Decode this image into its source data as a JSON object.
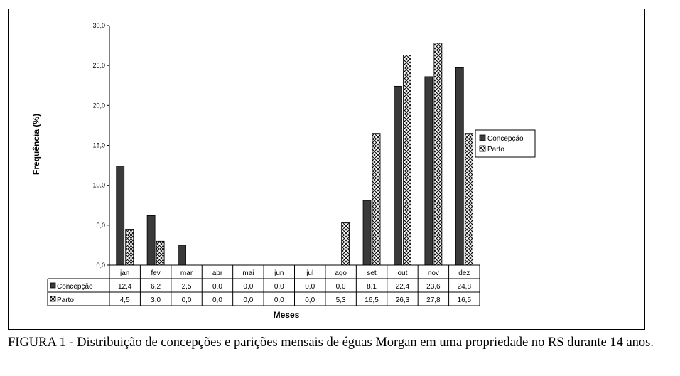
{
  "chart_data": {
    "type": "bar",
    "xlabel": "Meses",
    "ylabel": "Frequência (%)",
    "ylim": [
      0,
      30
    ],
    "ytick_values": [
      0,
      5,
      10,
      15,
      20,
      25,
      30
    ],
    "ytick_labels": [
      "0,0",
      "5,0",
      "10,0",
      "15,0",
      "20,0",
      "25,0",
      "30,0"
    ],
    "categories": [
      "jan",
      "fev",
      "mar",
      "abr",
      "mai",
      "jun",
      "jul",
      "ago",
      "set",
      "out",
      "nov",
      "dez"
    ],
    "series": [
      {
        "name": "Concepção",
        "values": [
          12.4,
          6.2,
          2.5,
          0.0,
          0.0,
          0.0,
          0.0,
          0.0,
          8.1,
          22.4,
          23.6,
          24.8
        ],
        "labels": [
          "12,4",
          "6,2",
          "2,5",
          "0,0",
          "0,0",
          "0,0",
          "0,0",
          "0,0",
          "8,1",
          "22,4",
          "23,6",
          "24,8"
        ],
        "fill": "solid-dark",
        "color": "#3a3a3a"
      },
      {
        "name": "Parto",
        "values": [
          4.5,
          3.0,
          0.0,
          0.0,
          0.0,
          0.0,
          0.0,
          5.3,
          16.5,
          26.3,
          27.8,
          16.5
        ],
        "labels": [
          "4,5",
          "3,0",
          "0,0",
          "0,0",
          "0,0",
          "0,0",
          "0,0",
          "5,3",
          "16,5",
          "26,3",
          "27,8",
          "16,5"
        ],
        "fill": "crosshatch",
        "color": "#000000"
      }
    ],
    "legend_position": "right",
    "grid": false,
    "data_table": true
  },
  "caption": "FIGURA 1 - Distribuição de concepções e parições mensais de éguas Morgan em uma propriedade no RS durante 14 anos."
}
